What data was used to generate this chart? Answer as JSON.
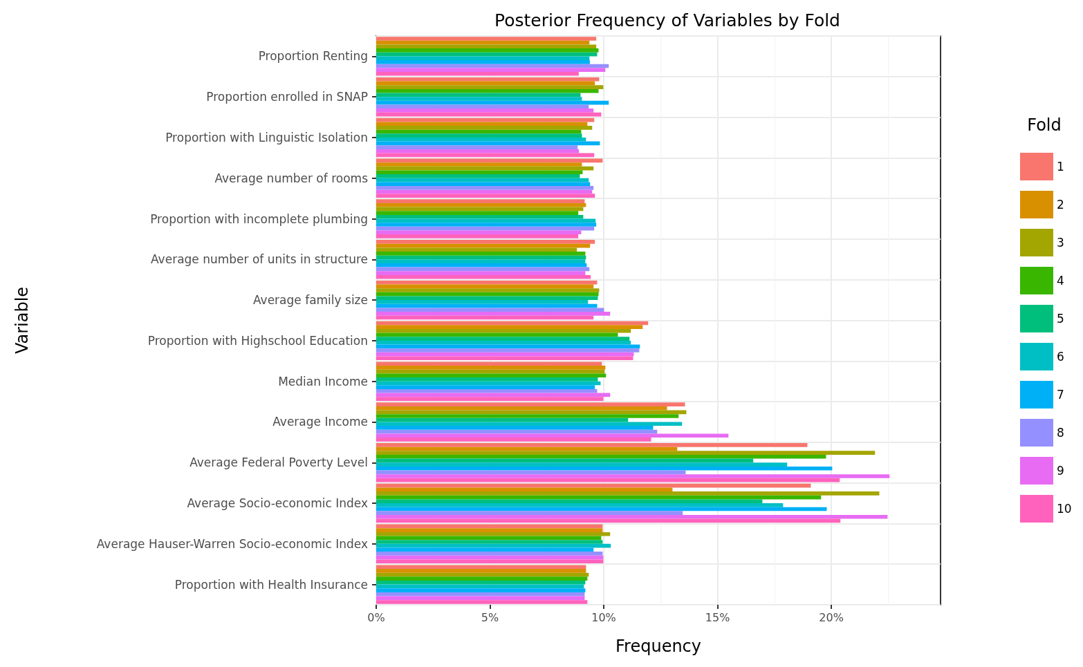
{
  "chart_data": {
    "type": "bar",
    "orientation": "horizontal",
    "title": "Posterior Frequency of Variables by Fold",
    "xlabel": "Frequency",
    "ylabel": "Variable",
    "legend_title": "Fold",
    "legend": "right",
    "grid": true,
    "categories": [
      "Proportion Renting",
      "Proportion enrolled in SNAP",
      "Proportion with Linguistic Isolation",
      "Average number of rooms",
      "Proportion with incomplete plumbing",
      "Average number of units in structure",
      "Average family size",
      "Proportion with Highschool Education",
      "Median Income",
      "Average Income",
      "Average Federal Poverty Level",
      "Average Socio-economic Index",
      "Average Hauser-Warren Socio-economic Index",
      "Proportion with Health Insurance"
    ],
    "xlim": [
      0,
      24.8
    ],
    "xticks": [
      {
        "value": 0,
        "label": "0%"
      },
      {
        "value": 5,
        "label": "5%"
      },
      {
        "value": 10,
        "label": "10%"
      },
      {
        "value": 15,
        "label": "15%"
      },
      {
        "value": 20,
        "label": "20%"
      }
    ],
    "series": [
      {
        "name": "1",
        "color": "#f8766d",
        "values": [
          9.67,
          9.8,
          9.58,
          9.95,
          9.16,
          9.61,
          9.71,
          11.95,
          9.92,
          13.57,
          18.95,
          19.1,
          9.95,
          9.22
        ]
      },
      {
        "name": "2",
        "color": "#d89000",
        "values": [
          9.37,
          9.61,
          9.28,
          9.04,
          9.22,
          9.4,
          9.55,
          11.71,
          10.07,
          12.78,
          13.23,
          13.02,
          9.95,
          9.22
        ]
      },
      {
        "name": "3",
        "color": "#a3a500",
        "values": [
          9.67,
          9.98,
          9.49,
          9.55,
          9.1,
          8.82,
          9.8,
          11.19,
          10.04,
          13.63,
          21.92,
          22.11,
          10.28,
          9.34
        ]
      },
      {
        "name": "4",
        "color": "#39b600",
        "values": [
          9.77,
          9.77,
          9.01,
          9.07,
          8.88,
          9.19,
          9.77,
          10.62,
          10.1,
          13.29,
          19.77,
          19.55,
          9.89,
          9.28
        ]
      },
      {
        "name": "5",
        "color": "#00bf7d",
        "values": [
          9.71,
          8.98,
          9.04,
          8.95,
          9.1,
          9.22,
          9.74,
          11.13,
          9.74,
          11.07,
          16.57,
          16.97,
          9.95,
          9.19
        ]
      },
      {
        "name": "6",
        "color": "#00bfc4",
        "values": [
          9.37,
          9.04,
          9.22,
          9.34,
          9.64,
          9.19,
          9.31,
          11.19,
          9.86,
          13.44,
          18.06,
          17.88,
          10.31,
          9.13
        ]
      },
      {
        "name": "7",
        "color": "#00b0f6",
        "values": [
          9.39,
          10.22,
          9.83,
          9.4,
          9.67,
          9.25,
          9.71,
          11.59,
          9.61,
          12.17,
          20.04,
          19.8,
          9.55,
          9.19
        ]
      },
      {
        "name": "8",
        "color": "#9590ff",
        "values": [
          10.22,
          9.34,
          8.85,
          9.55,
          9.58,
          9.37,
          10.01,
          11.56,
          9.71,
          12.35,
          13.6,
          13.47,
          9.95,
          9.16
        ]
      },
      {
        "name": "9",
        "color": "#e76bf3",
        "values": [
          10.07,
          9.55,
          8.91,
          9.49,
          9.01,
          9.19,
          10.28,
          11.32,
          10.28,
          15.48,
          22.56,
          22.47,
          9.98,
          9.16
        ]
      },
      {
        "name": "10",
        "color": "#ff62bc",
        "values": [
          8.9,
          9.89,
          9.58,
          9.61,
          8.88,
          9.43,
          9.55,
          11.29,
          9.98,
          12.08,
          20.37,
          20.4,
          9.98,
          9.28
        ]
      }
    ]
  }
}
